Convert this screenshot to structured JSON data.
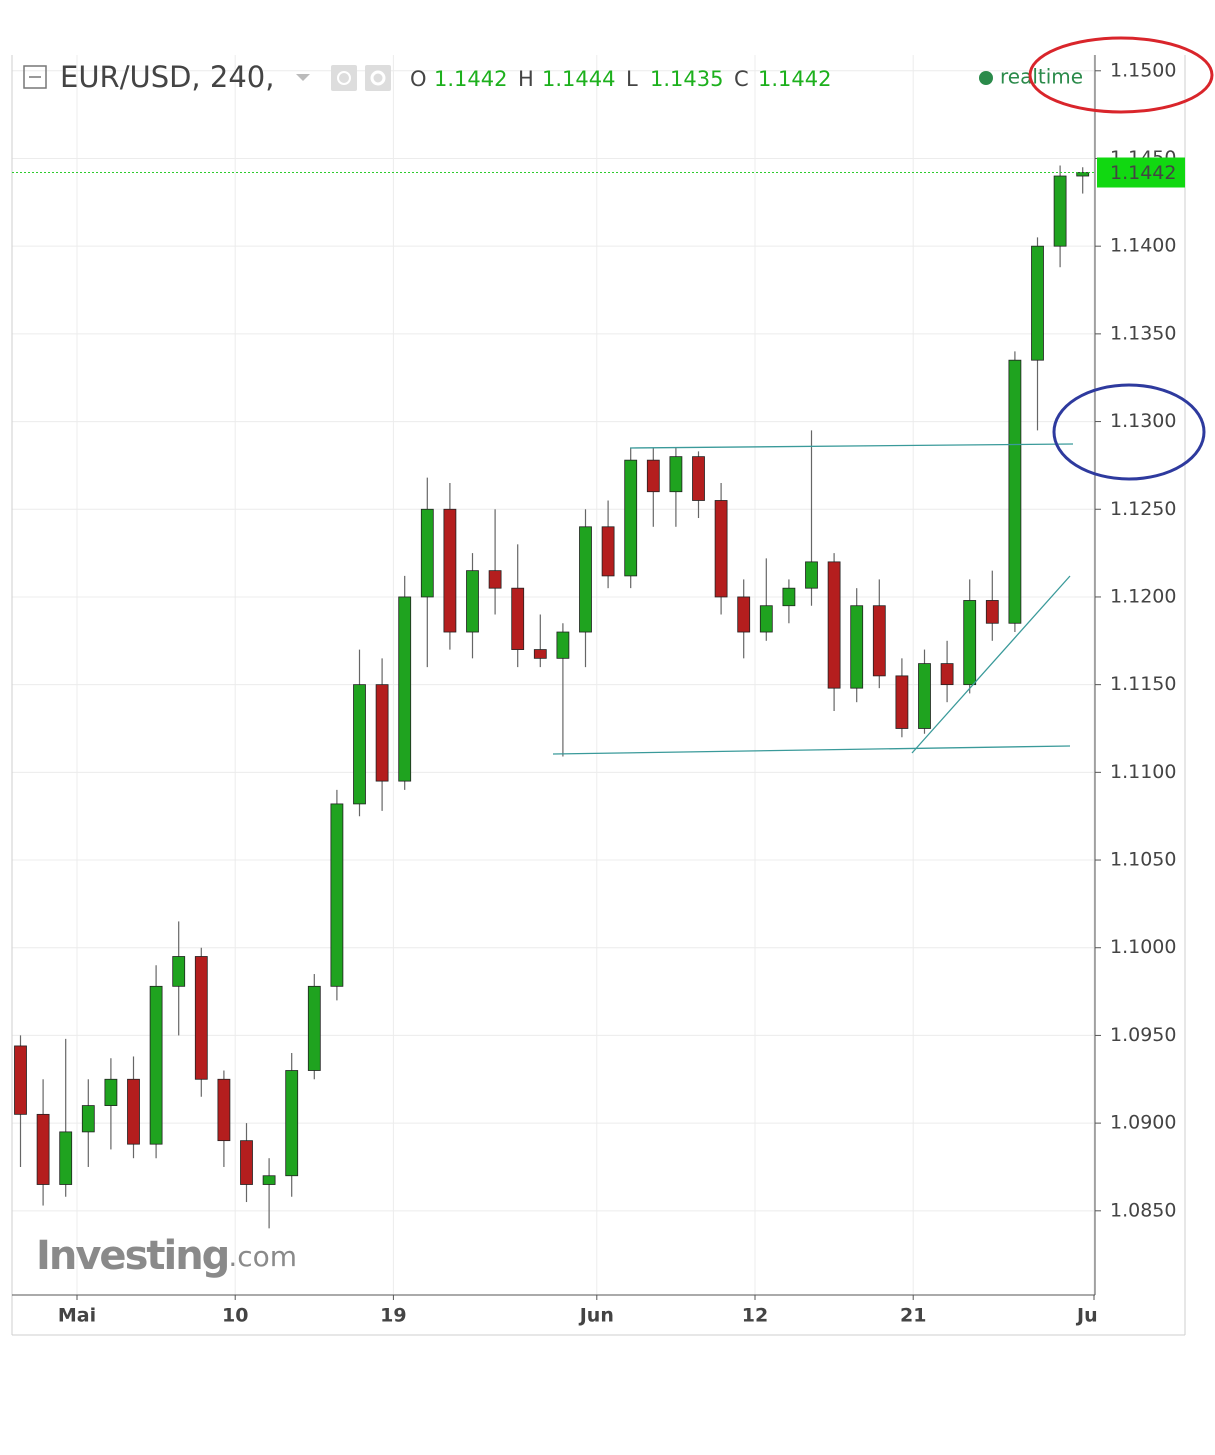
{
  "chart_data": {
    "type": "candlestick",
    "title": "EUR/USD, 240,",
    "legend_values": [
      {
        "name": "O",
        "value": 1.1442
      },
      {
        "name": "H",
        "value": 1.1444
      },
      {
        "name": "L",
        "value": 1.1435
      },
      {
        "name": "C",
        "value": 1.1442
      }
    ],
    "status": "realtime",
    "watermark": [
      "Investing",
      ".com"
    ],
    "last_price": 1.1442,
    "categories": [
      null,
      null,
      null,
      "Mai",
      null,
      null,
      null,
      null,
      null,
      null,
      "10",
      null,
      null,
      null,
      null,
      null,
      null,
      "19",
      null,
      null,
      null,
      null,
      null,
      null,
      null,
      null,
      "Jun",
      null,
      null,
      null,
      null,
      null,
      null,
      "12",
      null,
      null,
      null,
      null,
      null,
      null,
      "21",
      null,
      null,
      null,
      null,
      null,
      null,
      null,
      "Ju"
    ],
    "open": [
      1.0944,
      1.0905,
      1.0865,
      1.0895,
      1.091,
      1.0925,
      1.0888,
      1.0978,
      1.0995,
      1.0925,
      1.089,
      1.0865,
      1.087,
      1.093,
      1.0978,
      1.1082,
      1.115,
      1.1095,
      1.12,
      1.125,
      1.118,
      1.1215,
      1.1205,
      1.117,
      1.1165,
      1.118,
      1.124,
      1.1212,
      1.1278,
      1.126,
      1.128,
      1.1255,
      1.12,
      1.118,
      1.1195,
      1.1205,
      1.122,
      1.1148,
      1.1195,
      1.1155,
      1.1125,
      1.1162,
      1.115,
      1.1198,
      1.1185,
      1.1335,
      1.14,
      1.144,
      null
    ],
    "high": [
      1.095,
      1.0925,
      1.0948,
      1.0925,
      1.0937,
      1.0938,
      1.099,
      1.1015,
      1.1,
      1.093,
      1.09,
      1.088,
      1.094,
      1.0985,
      1.109,
      1.117,
      1.1165,
      1.1212,
      1.1268,
      1.1265,
      1.1225,
      1.125,
      1.123,
      1.119,
      1.1185,
      1.125,
      1.1255,
      1.1285,
      1.1285,
      1.1285,
      1.1283,
      1.1265,
      1.121,
      1.1222,
      1.121,
      1.1295,
      1.1225,
      1.1205,
      1.121,
      1.1165,
      1.117,
      1.1175,
      1.121,
      1.1215,
      1.134,
      1.1405,
      1.1446,
      1.1445,
      null
    ],
    "low": [
      1.0875,
      1.0853,
      1.0858,
      1.0875,
      1.0885,
      1.088,
      1.088,
      1.095,
      1.0915,
      1.0875,
      1.0855,
      1.084,
      1.0858,
      1.0925,
      1.097,
      1.1075,
      1.1078,
      1.109,
      1.116,
      1.117,
      1.1165,
      1.119,
      1.116,
      1.116,
      1.1109,
      1.116,
      1.1205,
      1.1205,
      1.124,
      1.124,
      1.1245,
      1.119,
      1.1165,
      1.1175,
      1.1185,
      1.1195,
      1.1135,
      1.114,
      1.1148,
      1.112,
      1.1122,
      1.114,
      1.1145,
      1.1175,
      1.118,
      1.1295,
      1.1388,
      1.143,
      null
    ],
    "close": [
      1.0905,
      1.0865,
      1.0895,
      1.091,
      1.0925,
      1.0888,
      1.0978,
      1.0995,
      1.0925,
      1.089,
      1.0865,
      1.087,
      1.093,
      1.0978,
      1.1082,
      1.115,
      1.1095,
      1.12,
      1.125,
      1.118,
      1.1215,
      1.1205,
      1.117,
      1.1165,
      1.118,
      1.124,
      1.1212,
      1.1278,
      1.126,
      1.128,
      1.1255,
      1.12,
      1.118,
      1.1195,
      1.1205,
      1.122,
      1.1148,
      1.1195,
      1.1155,
      1.1125,
      1.1162,
      1.115,
      1.1198,
      1.1185,
      1.1335,
      1.14,
      1.144,
      1.1442,
      null
    ],
    "up_color": "#1fa31f",
    "down_color": "#b41e1e",
    "ylim": [
      1.0802,
      1.1509
    ],
    "yticks": [
      {
        "value": 1.085,
        "label": "1.0850"
      },
      {
        "value": 1.09,
        "label": "1.0900"
      },
      {
        "value": 1.095,
        "label": "1.0950"
      },
      {
        "value": 1.1,
        "label": "1.1000"
      },
      {
        "value": 1.105,
        "label": "1.1050"
      },
      {
        "value": 1.11,
        "label": "1.1100"
      },
      {
        "value": 1.115,
        "label": "1.1150"
      },
      {
        "value": 1.12,
        "label": "1.1200"
      },
      {
        "value": 1.125,
        "label": "1.1250"
      },
      {
        "value": 1.13,
        "label": "1.1300"
      },
      {
        "value": 1.135,
        "label": "1.1350"
      },
      {
        "value": 1.14,
        "label": "1.1400"
      },
      {
        "value": 1.145,
        "label": "1.1450"
      },
      {
        "value": 1.15,
        "label": "1.1500"
      }
    ],
    "grid": true
  }
}
